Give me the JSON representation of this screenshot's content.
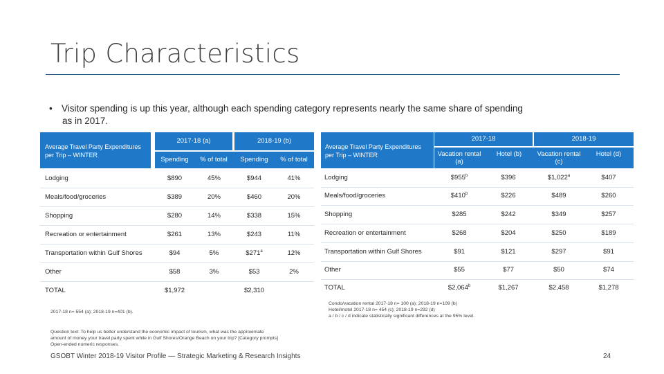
{
  "title": "Trip Characteristics",
  "bullet": {
    "line1": "Visitor spending is up this year, although each spending category represents nearly the same share of spending",
    "line2": "as in 2017."
  },
  "left_table": {
    "corner_label": "Average Travel Party Expenditures per Trip – WINTER",
    "year_a": "2017-18 (a)",
    "year_b": "2018-19 (b)",
    "sub_headers": [
      "Spending",
      "% of total",
      "Spending",
      "% of total"
    ],
    "rows": [
      {
        "label": "Lodging",
        "a_spend": "$890",
        "a_pct": "45%",
        "b_spend": "$944",
        "b_sup": "",
        "b_pct": "41%"
      },
      {
        "label": "Meals/food/groceries",
        "a_spend": "$389",
        "a_pct": "20%",
        "b_spend": "$460",
        "b_sup": "",
        "b_pct": "20%"
      },
      {
        "label": "Shopping",
        "a_spend": "$280",
        "a_pct": "14%",
        "b_spend": "$338",
        "b_sup": "",
        "b_pct": "15%"
      },
      {
        "label": "Recreation or entertainment",
        "a_spend": "$261",
        "a_pct": "13%",
        "b_spend": "$243",
        "b_sup": "",
        "b_pct": "11%"
      },
      {
        "label": "Transportation within Gulf Shores",
        "a_spend": "$94",
        "a_pct": "5%",
        "b_spend": "$271",
        "b_sup": "a",
        "b_pct": "12%"
      },
      {
        "label": "Other",
        "a_spend": "$58",
        "a_pct": "3%",
        "b_spend": "$53",
        "b_sup": "",
        "b_pct": "2%"
      },
      {
        "label": "TOTAL",
        "a_spend": "$1,972",
        "a_pct": "",
        "b_spend": "$2,310",
        "b_sup": "",
        "b_pct": ""
      }
    ],
    "note": "2017-18 n= 554 (a); 2018-19 n=401 (b)."
  },
  "right_table": {
    "corner_label": "Average Travel Party Expenditures per Trip – WINTER",
    "year_1": "2017-18",
    "year_2": "2018-19",
    "sub_headers": [
      "Vacation rental (a)",
      "Hotel (b)",
      "Vacation rental (c)",
      "Hotel (d)"
    ],
    "rows": [
      {
        "label": "Lodging",
        "v1": "$955",
        "v1_sup": "b",
        "v2": "$396",
        "v2_sup": "",
        "v3": "$1,022",
        "v3_sup": "a",
        "v4": "$407",
        "v4_sup": ""
      },
      {
        "label": "Meals/food/groceries",
        "v1": "$410",
        "v1_sup": "b",
        "v2": "$226",
        "v2_sup": "",
        "v3": "$489",
        "v3_sup": "",
        "v4": "$260",
        "v4_sup": ""
      },
      {
        "label": "Shopping",
        "v1": "$285",
        "v1_sup": "",
        "v2": "$242",
        "v2_sup": "",
        "v3": "$349",
        "v3_sup": "",
        "v4": "$257",
        "v4_sup": ""
      },
      {
        "label": "Recreation or entertainment",
        "v1": "$268",
        "v1_sup": "",
        "v2": "$204",
        "v2_sup": "",
        "v3": "$250",
        "v3_sup": "",
        "v4": "$189",
        "v4_sup": ""
      },
      {
        "label": "Transportation within Gulf Shores",
        "v1": "$91",
        "v1_sup": "",
        "v2": "$121",
        "v2_sup": "",
        "v3": "$297",
        "v3_sup": "",
        "v4": "$91",
        "v4_sup": ""
      },
      {
        "label": "Other",
        "v1": "$55",
        "v1_sup": "",
        "v2": "$77",
        "v2_sup": "",
        "v3": "$50",
        "v3_sup": "",
        "v4": "$74",
        "v4_sup": ""
      },
      {
        "label": "TOTAL",
        "v1": "$2,064",
        "v1_sup": "b",
        "v2": "$1,267",
        "v2_sup": "",
        "v3": "$2,458",
        "v3_sup": "",
        "v4": "$1,278",
        "v4_sup": ""
      }
    ],
    "notes": [
      "Condo/vacation rental 2017-18 n= 100 (a); 2018-19 n=109 (b)",
      "Hotel/motel 2017-18 n= 454 (c); 2018-19 n=292 (d)",
      "a / b / c / d indicate statistically significant differences at the 95% level."
    ]
  },
  "question_text": [
    "Question text: To help us better understand the economic impact of tourism, what was the approximate",
    "amount of money your travel party spent while in Gulf Shores/Orange Beach on your trip? [Category prompts]",
    "Open-ended numeric responses."
  ],
  "footer": "GSOBT Winter 2018-19 Visitor Profile — Strategic Marketing & Research Insights",
  "page_number": "24"
}
